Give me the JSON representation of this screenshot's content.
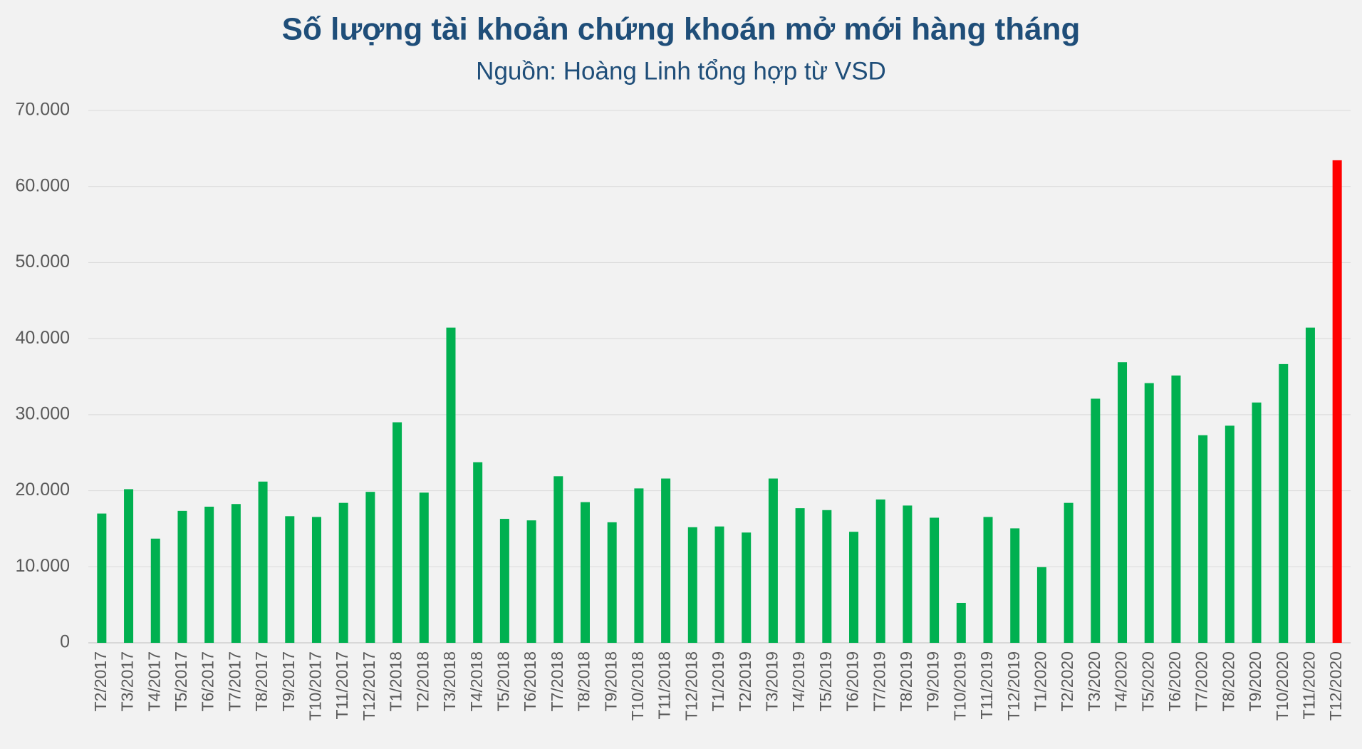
{
  "chart_data": {
    "type": "bar",
    "title": "Số lượng tài khoản chứng khoán mở mới hàng tháng",
    "subtitle": "Nguồn: Hoàng Linh tổng hợp từ VSD",
    "categories": [
      "T2/2017",
      "T3/2017",
      "T4/2017",
      "T5/2017",
      "T6/2017",
      "T7/2017",
      "T8/2017",
      "T9/2017",
      "T10/2017",
      "T11/2017",
      "T12/2017",
      "T1/2018",
      "T2/2018",
      "T3/2018",
      "T4/2018",
      "T5/2018",
      "T6/2018",
      "T7/2018",
      "T8/2018",
      "T9/2018",
      "T10/2018",
      "T11/2018",
      "T12/2018",
      "T1/2019",
      "T2/2019",
      "T3/2019",
      "T4/2019",
      "T5/2019",
      "T6/2019",
      "T7/2019",
      "T8/2019",
      "T9/2019",
      "T10/2019",
      "T11/2019",
      "T12/2019",
      "T1/2020",
      "T2/2020",
      "T3/2020",
      "T4/2020",
      "T5/2020",
      "T6/2020",
      "T7/2020",
      "T8/2020",
      "T9/2020",
      "T10/2020",
      "T11/2020",
      "T12/2020"
    ],
    "values": [
      17000,
      20200,
      13700,
      17350,
      17900,
      18250,
      21200,
      16650,
      16550,
      18400,
      19850,
      29000,
      19750,
      41450,
      23750,
      16300,
      16100,
      21900,
      18500,
      15850,
      20300,
      21600,
      15200,
      15300,
      14500,
      21600,
      17700,
      17450,
      14600,
      18850,
      18050,
      16450,
      5250,
      16550,
      15050,
      9950,
      18400,
      32100,
      36900,
      34150,
      35150,
      27300,
      28550,
      31600,
      36650,
      41450,
      63450
    ],
    "colors": [
      "#00b050",
      "#00b050",
      "#00b050",
      "#00b050",
      "#00b050",
      "#00b050",
      "#00b050",
      "#00b050",
      "#00b050",
      "#00b050",
      "#00b050",
      "#00b050",
      "#00b050",
      "#00b050",
      "#00b050",
      "#00b050",
      "#00b050",
      "#00b050",
      "#00b050",
      "#00b050",
      "#00b050",
      "#00b050",
      "#00b050",
      "#00b050",
      "#00b050",
      "#00b050",
      "#00b050",
      "#00b050",
      "#00b050",
      "#00b050",
      "#00b050",
      "#00b050",
      "#00b050",
      "#00b050",
      "#00b050",
      "#00b050",
      "#00b050",
      "#00b050",
      "#00b050",
      "#00b050",
      "#00b050",
      "#00b050",
      "#00b050",
      "#00b050",
      "#00b050",
      "#00b050",
      "#ff0000"
    ],
    "ylim": [
      0,
      70000
    ],
    "yticks": [
      0,
      {
        "value": 10000,
        "label": "10.000"
      },
      {
        "value": 20000,
        "label": "20.000"
      },
      {
        "value": 30000,
        "label": "30.000"
      },
      {
        "value": 40000,
        "label": "40.000"
      },
      {
        "value": 50000,
        "label": "50.000"
      },
      {
        "value": 60000,
        "label": "60.000"
      },
      {
        "value": 70000,
        "label": "70.000"
      }
    ],
    "grid": true
  }
}
